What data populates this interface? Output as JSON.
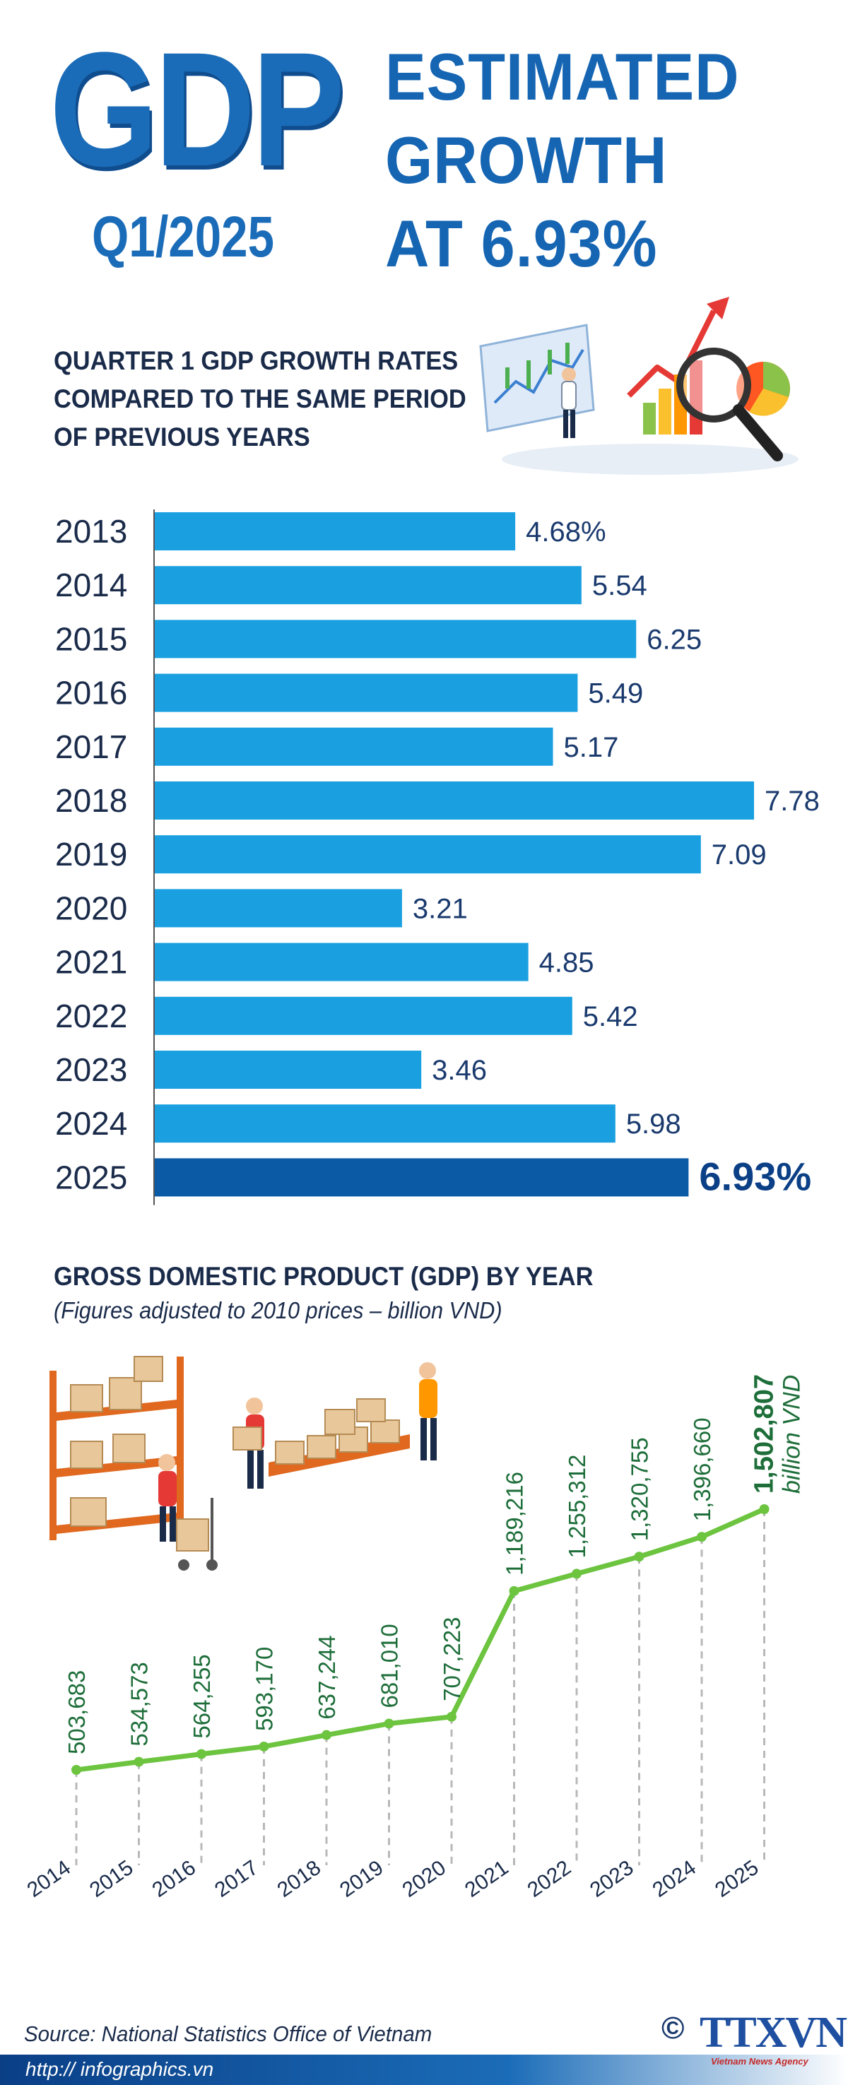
{
  "header": {
    "gdp": "GDP",
    "quarter": "Q1/2025",
    "headline_lines": [
      "ESTIMATED",
      "GROWTH",
      "AT 6.93%"
    ]
  },
  "bar_section": {
    "title": "QUARTER 1 GDP GROWTH RATES COMPARED TO THE SAME PERIOD OF PREVIOUS YEARS"
  },
  "line_section": {
    "title": "GROSS DOMESTIC PRODUCT (GDP) BY YEAR",
    "subtitle": "(Figures adjusted to 2010 prices – billion VND)"
  },
  "chart_data": [
    {
      "type": "bar",
      "orientation": "horizontal",
      "title": "QUARTER 1 GDP GROWTH RATES COMPARED TO THE SAME PERIOD OF PREVIOUS YEARS",
      "categories": [
        "2013",
        "2014",
        "2015",
        "2016",
        "2017",
        "2018",
        "2019",
        "2020",
        "2021",
        "2022",
        "2023",
        "2024",
        "2025"
      ],
      "values": [
        4.68,
        5.54,
        6.25,
        5.49,
        5.17,
        7.78,
        7.09,
        3.21,
        4.85,
        5.42,
        3.46,
        5.98,
        6.93
      ],
      "labels": [
        "4.68%",
        "5.54",
        "6.25",
        "5.49",
        "5.17",
        "7.78",
        "7.09",
        "3.21",
        "4.85",
        "5.42",
        "3.46",
        "5.98",
        "6.93%"
      ],
      "highlight_index": 12,
      "colors": {
        "bar": "#1aa0e0",
        "highlight": "#0b5aa6",
        "label": "#1a3a6e",
        "axis": "#555555"
      }
    },
    {
      "type": "line",
      "title": "GROSS DOMESTIC PRODUCT (GDP) BY YEAR",
      "subtitle": "(Figures adjusted to 2010 prices – billion VND)",
      "x": [
        "2014",
        "2015",
        "2016",
        "2017",
        "2018",
        "2019",
        "2020",
        "2021",
        "2022",
        "2023",
        "2024",
        "2025"
      ],
      "values": [
        503683,
        534573,
        564255,
        593170,
        637244,
        681010,
        707223,
        1189216,
        1255312,
        1320755,
        1396660,
        1502807
      ],
      "labels": [
        "503,683",
        "534,573",
        "564,255",
        "593,170",
        "637,244",
        "681,010",
        "707,223",
        "1,189,216",
        "1,255,312",
        "1,320,755",
        "1,396,660",
        "1,502,807"
      ],
      "unit_label": "billion VND",
      "highlight_index": 11,
      "colors": {
        "line": "#6cc43f",
        "label": "#1e6e3a",
        "highlight_label": "#1e6e3a",
        "dash": "#b8b8b8"
      }
    }
  ],
  "footer": {
    "source": "Source: National Statistics Office of Vietnam",
    "website": "http:// infographics.vn",
    "copyright": "©",
    "logo": "TTXVN",
    "logo_sub": "Vietnam News Agency"
  }
}
